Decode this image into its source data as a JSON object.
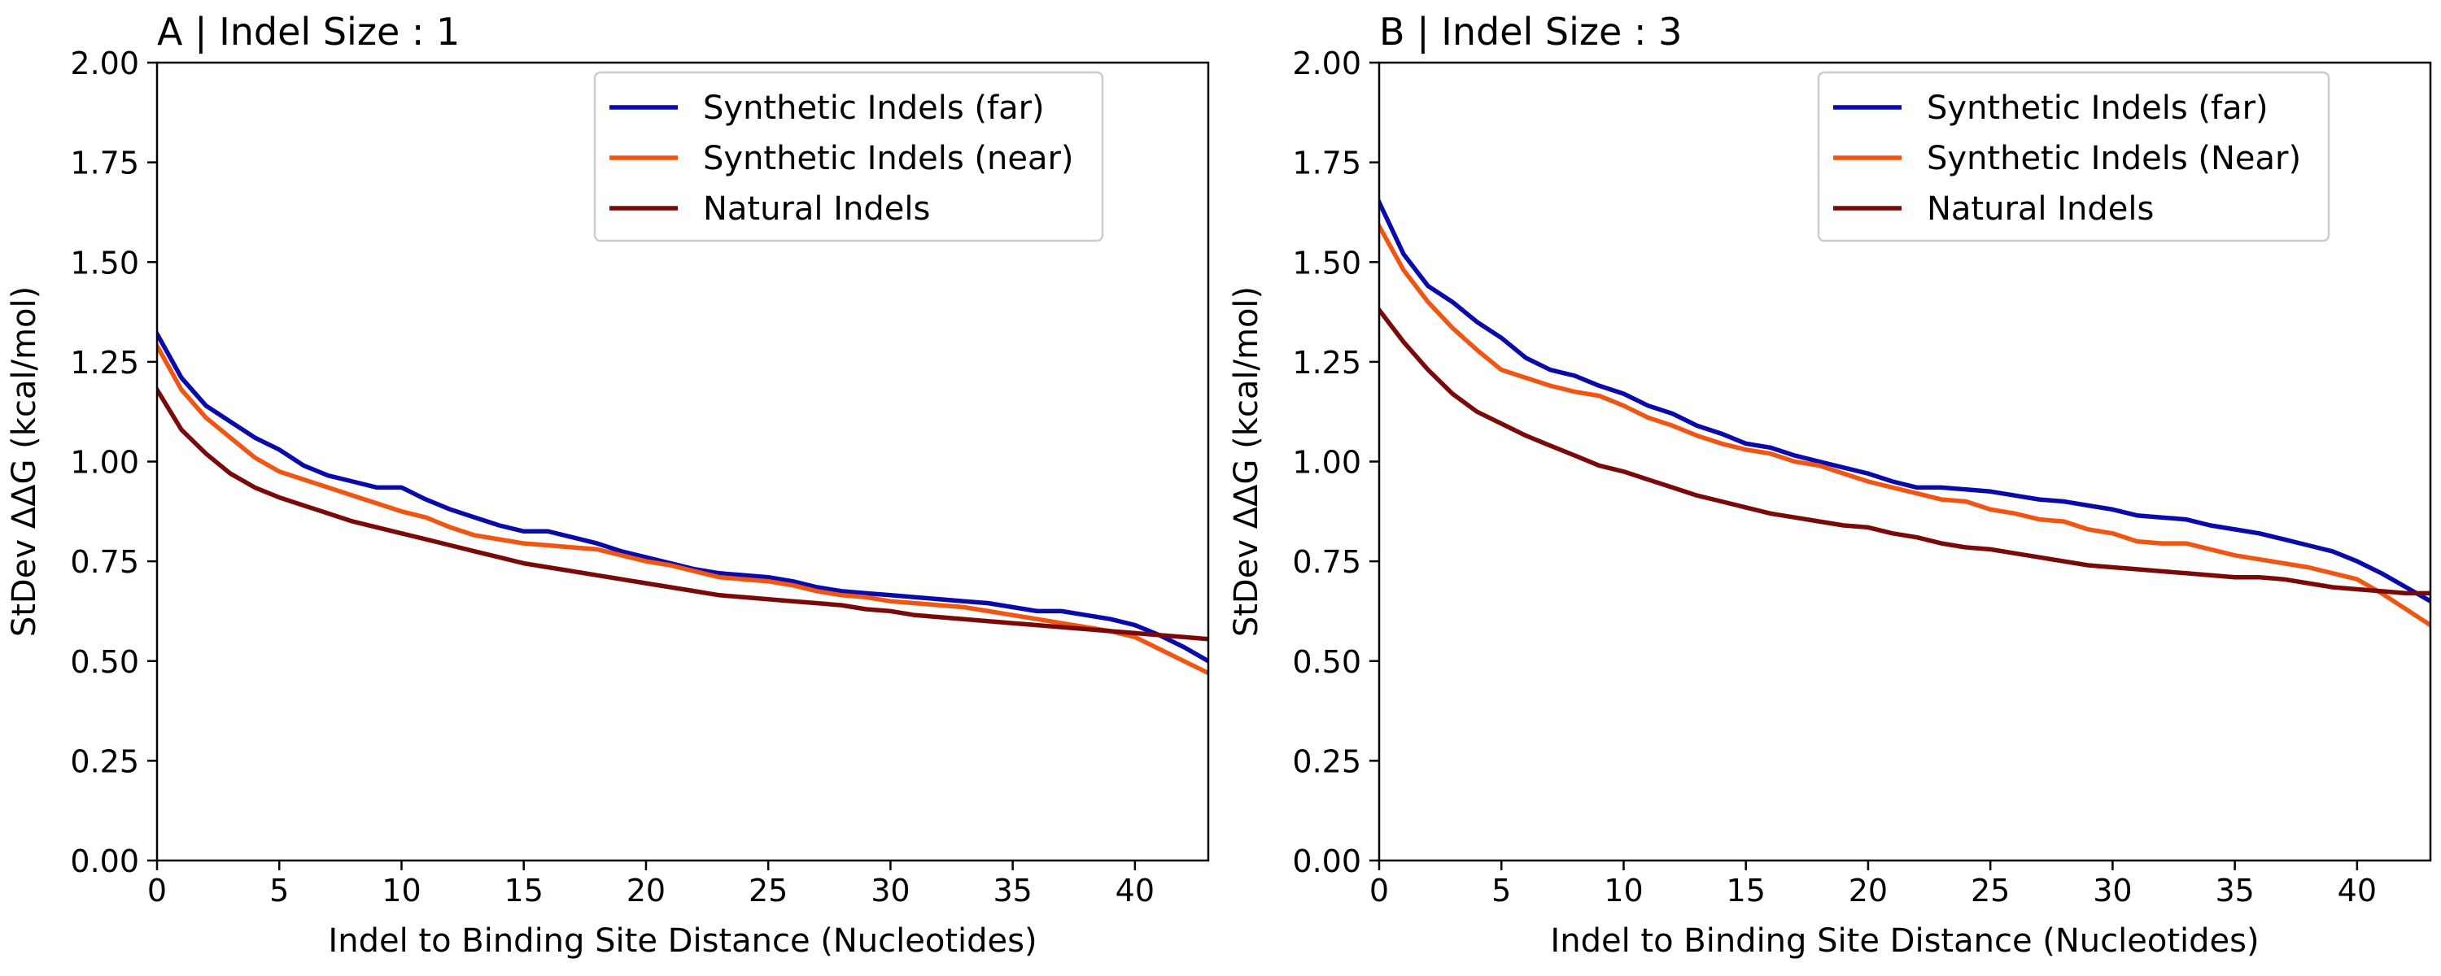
{
  "chart_data": [
    {
      "type": "line",
      "title": "A | Indel Size : 1",
      "xlabel": "Indel to Binding Site Distance (Nucleotides)",
      "ylabel": "StDev ΔΔG (kcal/mol)",
      "xlim": [
        0,
        43
      ],
      "ylim": [
        0,
        2.0
      ],
      "xticks": [
        0,
        5,
        10,
        15,
        20,
        25,
        30,
        35,
        40
      ],
      "yticks": [
        0.0,
        0.25,
        0.5,
        0.75,
        1.0,
        1.25,
        1.5,
        1.75,
        2.0
      ],
      "ytick_labels": [
        "0.00",
        "0.25",
        "0.50",
        "0.75",
        "1.00",
        "1.25",
        "1.50",
        "1.75",
        "2.00"
      ],
      "grid": false,
      "legend": "top-right",
      "x": [
        0,
        1,
        2,
        3,
        4,
        5,
        6,
        7,
        8,
        9,
        10,
        11,
        12,
        13,
        14,
        15,
        16,
        17,
        18,
        19,
        20,
        21,
        22,
        23,
        24,
        25,
        26,
        27,
        28,
        29,
        30,
        31,
        32,
        33,
        34,
        35,
        36,
        37,
        38,
        39,
        40,
        41,
        42,
        43
      ],
      "series": [
        {
          "name": "Synthetic Indels (far)",
          "color": "#0a0aaa",
          "values": [
            1.32,
            1.21,
            1.14,
            1.1,
            1.06,
            1.03,
            0.99,
            0.965,
            0.95,
            0.935,
            0.935,
            0.905,
            0.88,
            0.86,
            0.84,
            0.825,
            0.825,
            0.81,
            0.795,
            0.775,
            0.76,
            0.745,
            0.73,
            0.72,
            0.715,
            0.71,
            0.7,
            0.685,
            0.675,
            0.67,
            0.665,
            0.66,
            0.655,
            0.65,
            0.645,
            0.635,
            0.625,
            0.625,
            0.615,
            0.605,
            0.59,
            0.565,
            0.535,
            0.5
          ]
        },
        {
          "name": "Synthetic Indels (near)",
          "color": "#f05512",
          "values": [
            1.29,
            1.18,
            1.11,
            1.06,
            1.01,
            0.975,
            0.955,
            0.935,
            0.915,
            0.895,
            0.875,
            0.86,
            0.835,
            0.815,
            0.805,
            0.795,
            0.79,
            0.785,
            0.78,
            0.765,
            0.75,
            0.74,
            0.725,
            0.71,
            0.705,
            0.7,
            0.69,
            0.675,
            0.665,
            0.66,
            0.65,
            0.645,
            0.64,
            0.635,
            0.625,
            0.615,
            0.605,
            0.595,
            0.585,
            0.575,
            0.56,
            0.53,
            0.5,
            0.47
          ]
        },
        {
          "name": "Natural Indels",
          "color": "#7a0a0a",
          "values": [
            1.18,
            1.08,
            1.02,
            0.97,
            0.935,
            0.91,
            0.89,
            0.87,
            0.85,
            0.835,
            0.82,
            0.805,
            0.79,
            0.775,
            0.76,
            0.745,
            0.735,
            0.725,
            0.715,
            0.705,
            0.695,
            0.685,
            0.675,
            0.665,
            0.66,
            0.655,
            0.65,
            0.645,
            0.64,
            0.63,
            0.625,
            0.615,
            0.61,
            0.605,
            0.6,
            0.595,
            0.59,
            0.585,
            0.58,
            0.575,
            0.57,
            0.565,
            0.56,
            0.555
          ]
        }
      ]
    },
    {
      "type": "line",
      "title": "B | Indel Size : 3",
      "xlabel": "Indel to Binding Site Distance (Nucleotides)",
      "ylabel": "StDev ΔΔG (kcal/mol)",
      "xlim": [
        0,
        43
      ],
      "ylim": [
        0,
        2.0
      ],
      "xticks": [
        0,
        5,
        10,
        15,
        20,
        25,
        30,
        35,
        40
      ],
      "yticks": [
        0.0,
        0.25,
        0.5,
        0.75,
        1.0,
        1.25,
        1.5,
        1.75,
        2.0
      ],
      "ytick_labels": [
        "0.00",
        "0.25",
        "0.50",
        "0.75",
        "1.00",
        "1.25",
        "1.50",
        "1.75",
        "2.00"
      ],
      "grid": false,
      "legend": "top-right",
      "x": [
        0,
        1,
        2,
        3,
        4,
        5,
        6,
        7,
        8,
        9,
        10,
        11,
        12,
        13,
        14,
        15,
        16,
        17,
        18,
        19,
        20,
        21,
        22,
        23,
        24,
        25,
        26,
        27,
        28,
        29,
        30,
        31,
        32,
        33,
        34,
        35,
        36,
        37,
        38,
        39,
        40,
        41,
        42,
        43
      ],
      "series": [
        {
          "name": "Synthetic Indels (far)",
          "color": "#0a0aaa",
          "values": [
            1.65,
            1.52,
            1.44,
            1.4,
            1.35,
            1.31,
            1.26,
            1.23,
            1.215,
            1.19,
            1.17,
            1.14,
            1.12,
            1.09,
            1.07,
            1.045,
            1.035,
            1.015,
            1.0,
            0.985,
            0.97,
            0.95,
            0.935,
            0.935,
            0.93,
            0.925,
            0.915,
            0.905,
            0.9,
            0.89,
            0.88,
            0.865,
            0.86,
            0.855,
            0.84,
            0.83,
            0.82,
            0.805,
            0.79,
            0.775,
            0.75,
            0.72,
            0.685,
            0.65
          ]
        },
        {
          "name": "Synthetic Indels (Near)",
          "color": "#f05512",
          "values": [
            1.59,
            1.48,
            1.4,
            1.335,
            1.28,
            1.23,
            1.21,
            1.19,
            1.175,
            1.165,
            1.14,
            1.11,
            1.09,
            1.065,
            1.045,
            1.03,
            1.02,
            1.0,
            0.99,
            0.97,
            0.95,
            0.935,
            0.92,
            0.905,
            0.9,
            0.88,
            0.87,
            0.855,
            0.85,
            0.83,
            0.82,
            0.8,
            0.795,
            0.795,
            0.78,
            0.765,
            0.755,
            0.745,
            0.735,
            0.72,
            0.705,
            0.67,
            0.63,
            0.59
          ]
        },
        {
          "name": "Natural Indels",
          "color": "#7a0a0a",
          "values": [
            1.38,
            1.3,
            1.23,
            1.17,
            1.125,
            1.095,
            1.065,
            1.04,
            1.015,
            0.99,
            0.975,
            0.955,
            0.935,
            0.915,
            0.9,
            0.885,
            0.87,
            0.86,
            0.85,
            0.84,
            0.835,
            0.82,
            0.81,
            0.795,
            0.785,
            0.78,
            0.77,
            0.76,
            0.75,
            0.74,
            0.735,
            0.73,
            0.725,
            0.72,
            0.715,
            0.71,
            0.71,
            0.705,
            0.695,
            0.685,
            0.68,
            0.675,
            0.67,
            0.67
          ]
        }
      ]
    }
  ]
}
